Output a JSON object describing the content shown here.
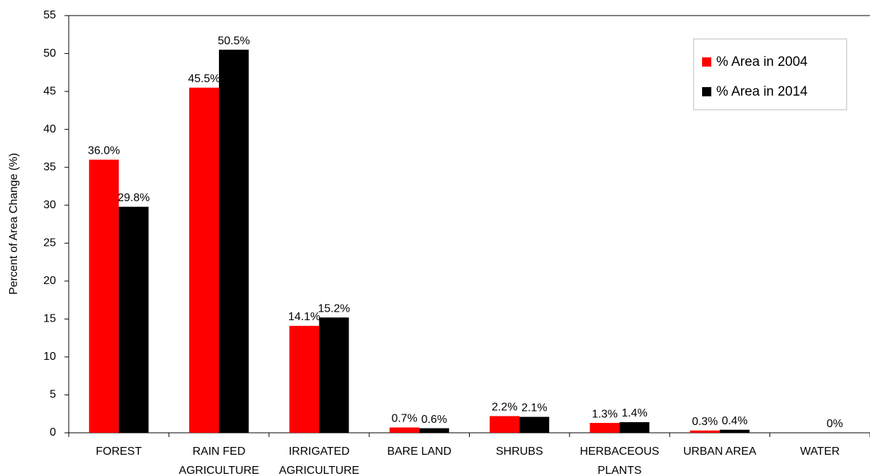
{
  "chart_data": {
    "type": "bar",
    "y_label": "Percent of Area Change (%)",
    "categories": [
      "FOREST",
      "RAIN FED AGRICULTURE",
      "IRRIGATED AGRICULTURE",
      "BARE LAND",
      "SHRUBS",
      "HERBACEOUS PLANTS",
      "URBAN AREA",
      "WATER"
    ],
    "series": [
      {
        "name": "% Area in 2004",
        "color": "#ff0000",
        "values": [
          36.0,
          45.5,
          14.1,
          0.7,
          2.2,
          1.3,
          0.3,
          0
        ],
        "value_labels": [
          "36.0%",
          "45.5%",
          "14.1%",
          "0.7%",
          "2.2%",
          "1.3%",
          "0.3%",
          null
        ]
      },
      {
        "name": "% Area in 2014",
        "color": "#000000",
        "values": [
          29.8,
          50.5,
          15.2,
          0.6,
          2.1,
          1.4,
          0.4,
          0
        ],
        "value_labels": [
          "29.8%",
          "50.5%",
          "15.2%",
          "0.6%",
          "2.1%",
          "1.4%",
          "0.4%",
          "0%"
        ]
      }
    ],
    "ylim": [
      0,
      55
    ],
    "yticks": [
      0,
      5,
      10,
      15,
      20,
      25,
      30,
      35,
      40,
      45,
      50,
      55
    ],
    "legend": "upper right"
  }
}
